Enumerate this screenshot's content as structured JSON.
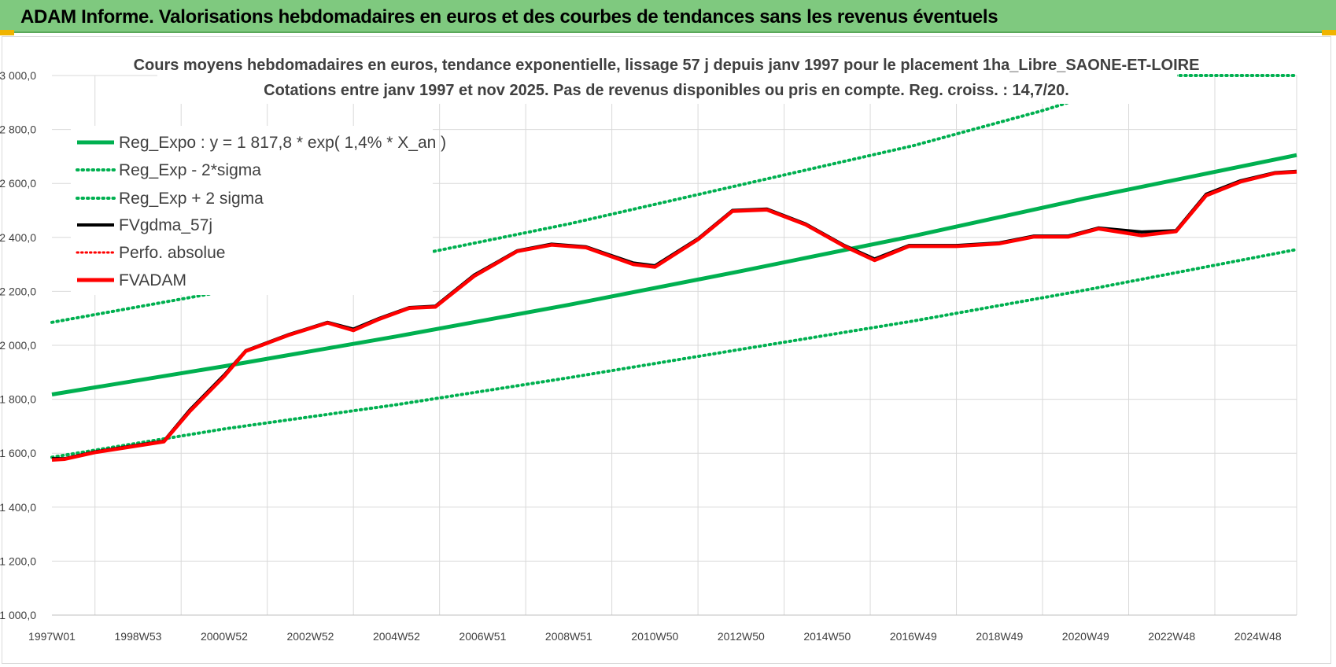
{
  "banner": {
    "title": "ADAM Informe. Valorisations hebdomadaires en euros et des courbes de tendances sans les revenus éventuels"
  },
  "colors": {
    "banner_bg": "#7fc97f",
    "green": "#00b050",
    "red": "#ff0000",
    "black": "#000000",
    "grid": "#d9d9d9"
  },
  "chart_data": {
    "type": "line",
    "title": [
      "Cours moyens hebdomadaires en euros, tendance exponentielle, lissage 57 j depuis janv 1997  pour le placement 1ha_Libre_SAONE-ET-LOIRE",
      "Cotations entre janv 1997 et nov 2025. Pas de revenus disponibles ou pris en compte. Reg. croiss. : 14,7/20."
    ],
    "xlabel": "",
    "ylabel": "",
    "x_range": [
      1997.0,
      2025.9
    ],
    "ylim": [
      1000,
      3000
    ],
    "y_ticks": [
      1000,
      1200,
      1400,
      1600,
      1800,
      2000,
      2200,
      2400,
      2600,
      2800,
      3000
    ],
    "y_tick_labels": [
      "1 000,0",
      "1 200,0",
      "1 400,0",
      "1 600,0",
      "1 800,0",
      "2 000,0",
      "2 200,0",
      "2 400,0",
      "2 600,0",
      "2 800,0",
      "3 000,0"
    ],
    "x_tick_labels": [
      "1997W01",
      "1998W53",
      "2000W52",
      "2002W52",
      "2004W52",
      "2006W51",
      "2008W51",
      "2010W50",
      "2012W50",
      "2014W50",
      "2016W49",
      "2018W49",
      "2020W49",
      "2022W48",
      "2024W48"
    ],
    "x_tick_values": [
      1997.0,
      1999.0,
      2001.0,
      2003.0,
      2005.0,
      2007.0,
      2009.0,
      2011.0,
      2013.0,
      2015.0,
      2017.0,
      2019.0,
      2021.0,
      2023.0,
      2025.0
    ],
    "grid": true,
    "legend_position": "top-left",
    "series": [
      {
        "name": "Reg_Expo : y = 1 817,8 * exp( 1,4% *  X_an )",
        "style": "solid",
        "color": "#00b050",
        "x": [
          1997.0,
          2001.0,
          2005.0,
          2009.0,
          2013.0,
          2017.0,
          2021.0,
          2025.9
        ],
        "y": [
          1817.8,
          1922.5,
          2033.0,
          2150.0,
          2275.0,
          2405.0,
          2545.0,
          2705.0
        ]
      },
      {
        "name": "Reg_Exp - 2*sigma",
        "style": "dotted",
        "color": "#00b050",
        "x": [
          1997.0,
          2001.0,
          2005.0,
          2009.0,
          2013.0,
          2017.0,
          2021.0,
          2025.9
        ],
        "y": [
          1585.0,
          1690.0,
          1780.0,
          1880.0,
          1985.0,
          2090.0,
          2205.0,
          2355.0
        ]
      },
      {
        "name": "Reg_Exp + 2 sigma",
        "style": "dotted",
        "color": "#00b050",
        "x": [
          1997.0,
          2001.0,
          2005.0,
          2009.0,
          2013.0,
          2017.0,
          2020.0,
          2021.8,
          2022.3,
          2023.0,
          2025.9
        ],
        "y": [
          2085.0,
          2200.0,
          2320.0,
          2450.0,
          2595.0,
          2740.0,
          2870.0,
          2960.0,
          2985.0,
          3000.0,
          3000.0
        ]
      },
      {
        "name": "FVgdma_57j",
        "style": "solid",
        "color": "#000000",
        "x": [
          1997.0,
          1997.3,
          1998.0,
          1999.0,
          1999.6,
          2000.2,
          2001.0,
          2001.5,
          2002.5,
          2003.4,
          2004.0,
          2004.6,
          2005.3,
          2005.9,
          2006.8,
          2007.8,
          2008.6,
          2009.4,
          2010.5,
          2011.0,
          2012.0,
          2012.8,
          2013.6,
          2014.5,
          2015.4,
          2016.1,
          2016.9,
          2018.0,
          2019.0,
          2019.8,
          2020.6,
          2021.3,
          2022.3,
          2023.1,
          2023.8,
          2024.6,
          2025.4,
          2025.9
        ],
        "y": [
          1580,
          1580,
          1605,
          1630,
          1645,
          1760,
          1890,
          1980,
          2040,
          2085,
          2060,
          2100,
          2140,
          2145,
          2260,
          2350,
          2375,
          2365,
          2305,
          2295,
          2395,
          2500,
          2505,
          2450,
          2370,
          2320,
          2370,
          2370,
          2380,
          2405,
          2405,
          2435,
          2420,
          2425,
          2560,
          2610,
          2640,
          2645
        ]
      },
      {
        "name": "Perfo. absolue",
        "style": "dotted",
        "color": "#ff0000",
        "x": [],
        "y": []
      },
      {
        "name": "FVADAM",
        "style": "solid",
        "color": "#ff0000",
        "x": [
          1997.0,
          1997.3,
          1998.0,
          1999.0,
          1999.6,
          2000.2,
          2001.0,
          2001.5,
          2002.5,
          2003.4,
          2004.0,
          2004.6,
          2005.3,
          2005.9,
          2006.8,
          2007.8,
          2008.6,
          2009.4,
          2010.5,
          2011.0,
          2012.0,
          2012.8,
          2013.6,
          2014.5,
          2015.4,
          2016.1,
          2016.9,
          2018.0,
          2019.0,
          2019.8,
          2020.6,
          2021.3,
          2022.3,
          2023.1,
          2023.8,
          2024.6,
          2025.4,
          2025.9
        ],
        "y": [
          1575,
          1578,
          1603,
          1628,
          1643,
          1755,
          1885,
          1978,
          2038,
          2083,
          2055,
          2097,
          2138,
          2142,
          2256,
          2348,
          2372,
          2362,
          2300,
          2290,
          2392,
          2497,
          2502,
          2447,
          2367,
          2315,
          2367,
          2367,
          2377,
          2402,
          2402,
          2432,
          2407,
          2422,
          2555,
          2606,
          2638,
          2643
        ]
      }
    ]
  }
}
